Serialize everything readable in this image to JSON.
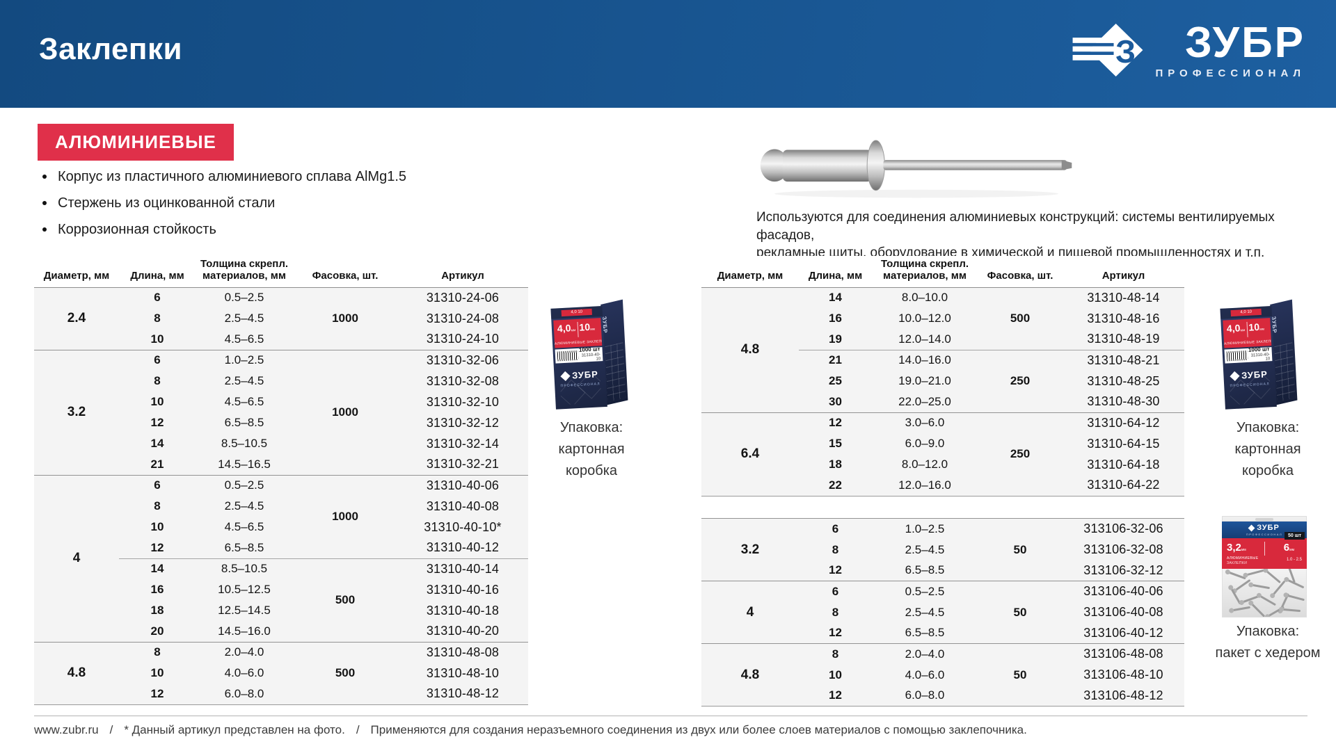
{
  "page": {
    "title": "Заклепки",
    "brand": {
      "name": "ЗУБР",
      "tagline": "ПРОФЕССИОНАЛ",
      "emblem_letter": "З"
    },
    "category_badge": "АЛЮМИНИЕВЫЕ",
    "features": [
      "Корпус из пластичного алюминиевого сплава AlMg1.5",
      "Стержень из оцинкованной стали",
      "Коррозионная стойкость"
    ],
    "usage_note": "Используются для соединения алюминиевых конструкций: системы вентилируемых фасадов,\nрекламные щиты, оборудование в химической и пищевой промышленностях и т.п.",
    "footer": {
      "site": "www.zubr.ru",
      "sep": "/",
      "note_photo": "* Данный артикул представлен на фото.",
      "note_usage": "Применяются для создания неразъемного соединения из двух или более слоев материалов с помощью заклепочника."
    }
  },
  "table_headers": [
    "Диаметр, мм",
    "Длина, мм",
    "Толщина скрепл.\nматериалов, мм",
    "Фасовка, шт.",
    "Артикул"
  ],
  "tables": {
    "left": {
      "show_header": true,
      "groups": [
        {
          "diameter": "2.4",
          "pack": [
            {
              "qty": "1000",
              "span": 3
            }
          ],
          "subsep": null,
          "rows": [
            [
              "6",
              "0.5–2.5",
              "31310-24-06"
            ],
            [
              "8",
              "2.5–4.5",
              "31310-24-08"
            ],
            [
              "10",
              "4.5–6.5",
              "31310-24-10"
            ]
          ]
        },
        {
          "diameter": "3.2",
          "pack": [
            {
              "qty": "1000",
              "span": 6
            }
          ],
          "subsep": null,
          "rows": [
            [
              "6",
              "1.0–2.5",
              "31310-32-06"
            ],
            [
              "8",
              "2.5–4.5",
              "31310-32-08"
            ],
            [
              "10",
              "4.5–6.5",
              "31310-32-10"
            ],
            [
              "12",
              "6.5–8.5",
              "31310-32-12"
            ],
            [
              "14",
              "8.5–10.5",
              "31310-32-14"
            ],
            [
              "21",
              "14.5–16.5",
              "31310-32-21"
            ]
          ]
        },
        {
          "diameter": "4",
          "pack": [
            {
              "qty": "1000",
              "span": 4
            },
            {
              "qty": "500",
              "span": 4
            }
          ],
          "subsep": 4,
          "rows": [
            [
              "6",
              "0.5–2.5",
              "31310-40-06"
            ],
            [
              "8",
              "2.5–4.5",
              "31310-40-08"
            ],
            [
              "10",
              "4.5–6.5",
              "31310-40-10*"
            ],
            [
              "12",
              "6.5–8.5",
              "31310-40-12"
            ],
            [
              "14",
              "8.5–10.5",
              "31310-40-14"
            ],
            [
              "16",
              "10.5–12.5",
              "31310-40-16"
            ],
            [
              "18",
              "12.5–14.5",
              "31310-40-18"
            ],
            [
              "20",
              "14.5–16.0",
              "31310-40-20"
            ]
          ]
        },
        {
          "diameter": "4.8",
          "pack": [
            {
              "qty": "500",
              "span": 3
            }
          ],
          "subsep": null,
          "rows": [
            [
              "8",
              "2.0–4.0",
              "31310-48-08"
            ],
            [
              "10",
              "4.0–6.0",
              "31310-48-10"
            ],
            [
              "12",
              "6.0–8.0",
              "31310-48-12"
            ]
          ]
        }
      ]
    },
    "right_top": {
      "show_header": true,
      "groups": [
        {
          "diameter": "4.8",
          "pack": [
            {
              "qty": "500",
              "span": 3
            },
            {
              "qty": "250",
              "span": 3
            }
          ],
          "subsep": 3,
          "rows": [
            [
              "14",
              "8.0–10.0",
              "31310-48-14"
            ],
            [
              "16",
              "10.0–12.0",
              "31310-48-16"
            ],
            [
              "19",
              "12.0–14.0",
              "31310-48-19"
            ],
            [
              "21",
              "14.0–16.0",
              "31310-48-21"
            ],
            [
              "25",
              "19.0–21.0",
              "31310-48-25"
            ],
            [
              "30",
              "22.0–25.0",
              "31310-48-30"
            ]
          ]
        },
        {
          "diameter": "6.4",
          "pack": [
            {
              "qty": "250",
              "span": 4
            }
          ],
          "subsep": null,
          "rows": [
            [
              "12",
              "3.0–6.0",
              "31310-64-12"
            ],
            [
              "15",
              "6.0–9.0",
              "31310-64-15"
            ],
            [
              "18",
              "8.0–12.0",
              "31310-64-18"
            ],
            [
              "22",
              "12.0–16.0",
              "31310-64-22"
            ]
          ]
        }
      ]
    },
    "right_bottom": {
      "show_header": false,
      "groups": [
        {
          "diameter": "3.2",
          "pack": [
            {
              "qty": "50",
              "span": 3
            }
          ],
          "subsep": null,
          "rows": [
            [
              "6",
              "1.0–2.5",
              "313106-32-06"
            ],
            [
              "8",
              "2.5–4.5",
              "313106-32-08"
            ],
            [
              "12",
              "6.5–8.5",
              "313106-32-12"
            ]
          ]
        },
        {
          "diameter": "4",
          "pack": [
            {
              "qty": "50",
              "span": 3
            }
          ],
          "subsep": null,
          "rows": [
            [
              "6",
              "0.5–2.5",
              "313106-40-06"
            ],
            [
              "8",
              "2.5–4.5",
              "313106-40-08"
            ],
            [
              "12",
              "6.5–8.5",
              "313106-40-12"
            ]
          ]
        },
        {
          "diameter": "4.8",
          "pack": [
            {
              "qty": "50",
              "span": 3
            }
          ],
          "subsep": null,
          "rows": [
            [
              "8",
              "2.0–4.0",
              "313106-48-08"
            ],
            [
              "10",
              "4.0–6.0",
              "313106-48-10"
            ],
            [
              "12",
              "6.0–8.0",
              "313106-48-12"
            ]
          ]
        }
      ]
    }
  },
  "packaging": {
    "box": {
      "caption": [
        "Упаковка:",
        "картонная коробка"
      ],
      "label_diameter": "4,0",
      "label_diameter_unit": "мм",
      "label_length": "10",
      "label_length_unit": "мм",
      "label_chip": "4,0  10",
      "label_product": "АЛЮМИНИЕВЫЕ ЗАКЛЕПКИ",
      "label_qty": "1000 шт",
      "label_sku": "31310-40-10"
    },
    "bag": {
      "caption": [
        "Упаковка:",
        "пакет с хедером"
      ],
      "label_diameter": "3,2",
      "label_diameter_unit": "мм",
      "label_length": "6",
      "label_length_unit": "мм",
      "label_line1": "АЛЮМИНИЕВЫЕ",
      "label_line2": "ЗАКЛЕПКИ",
      "label_range": "1.0 - 2.5",
      "label_qty": "50 шт"
    }
  },
  "colors": {
    "header_blue_left": "#134a80",
    "header_blue_right": "#1d5fa0",
    "accent_red": "#e0304a",
    "label_red": "#d8293c",
    "box_navy_dark": "#1b2440",
    "row_bg": "#f4f4f4"
  }
}
